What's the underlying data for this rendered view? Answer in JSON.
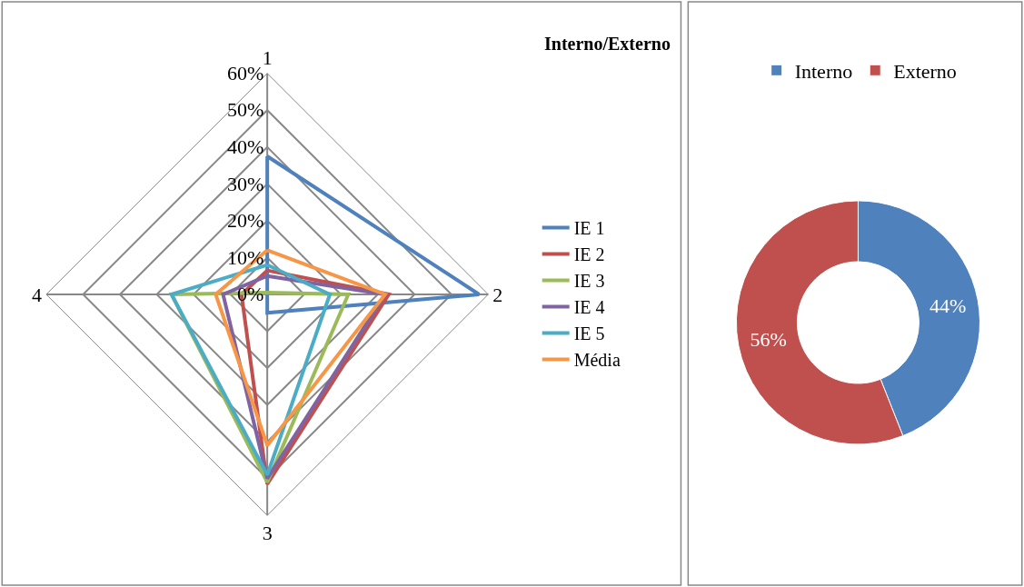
{
  "chart_data": [
    {
      "type": "radar",
      "title": "Interno/Externo",
      "categories": [
        "1",
        "2",
        "3",
        "4"
      ],
      "ylim": [
        0,
        60
      ],
      "yticks": [
        {
          "value": 0,
          "label": "0%"
        },
        {
          "value": 10,
          "label": "10%"
        },
        {
          "value": 20,
          "label": "20%"
        },
        {
          "value": 30,
          "label": "30%"
        },
        {
          "value": 40,
          "label": "40%"
        },
        {
          "value": 50,
          "label": "50%"
        },
        {
          "value": 60,
          "label": "60%"
        }
      ],
      "grid": true,
      "legend": "right",
      "marker": "none",
      "series": [
        {
          "name": "IE 1",
          "color": "#4f81bd",
          "values": [
            37.5,
            57.5,
            5,
            0
          ]
        },
        {
          "name": "IE 2",
          "color": "#c0504d",
          "values": [
            6.5,
            33,
            51.5,
            7
          ]
        },
        {
          "name": "IE 3",
          "color": "#9bbb59",
          "values": [
            0.5,
            22,
            51,
            26
          ]
        },
        {
          "name": "IE 4",
          "color": "#8064a2",
          "values": [
            5,
            32,
            50,
            12
          ]
        },
        {
          "name": "IE 5",
          "color": "#4bacc6",
          "values": [
            8,
            17,
            49,
            26
          ]
        },
        {
          "name": "Média",
          "color": "#f79646",
          "values": [
            12,
            32,
            41,
            14
          ]
        }
      ]
    },
    {
      "type": "donut",
      "categories": [
        "Interno",
        "Externo"
      ],
      "values": [
        44,
        56
      ],
      "colors": [
        "#4f81bd",
        "#c0504d"
      ],
      "value_labels": [
        "44%",
        "56%"
      ],
      "legend": "top"
    }
  ]
}
